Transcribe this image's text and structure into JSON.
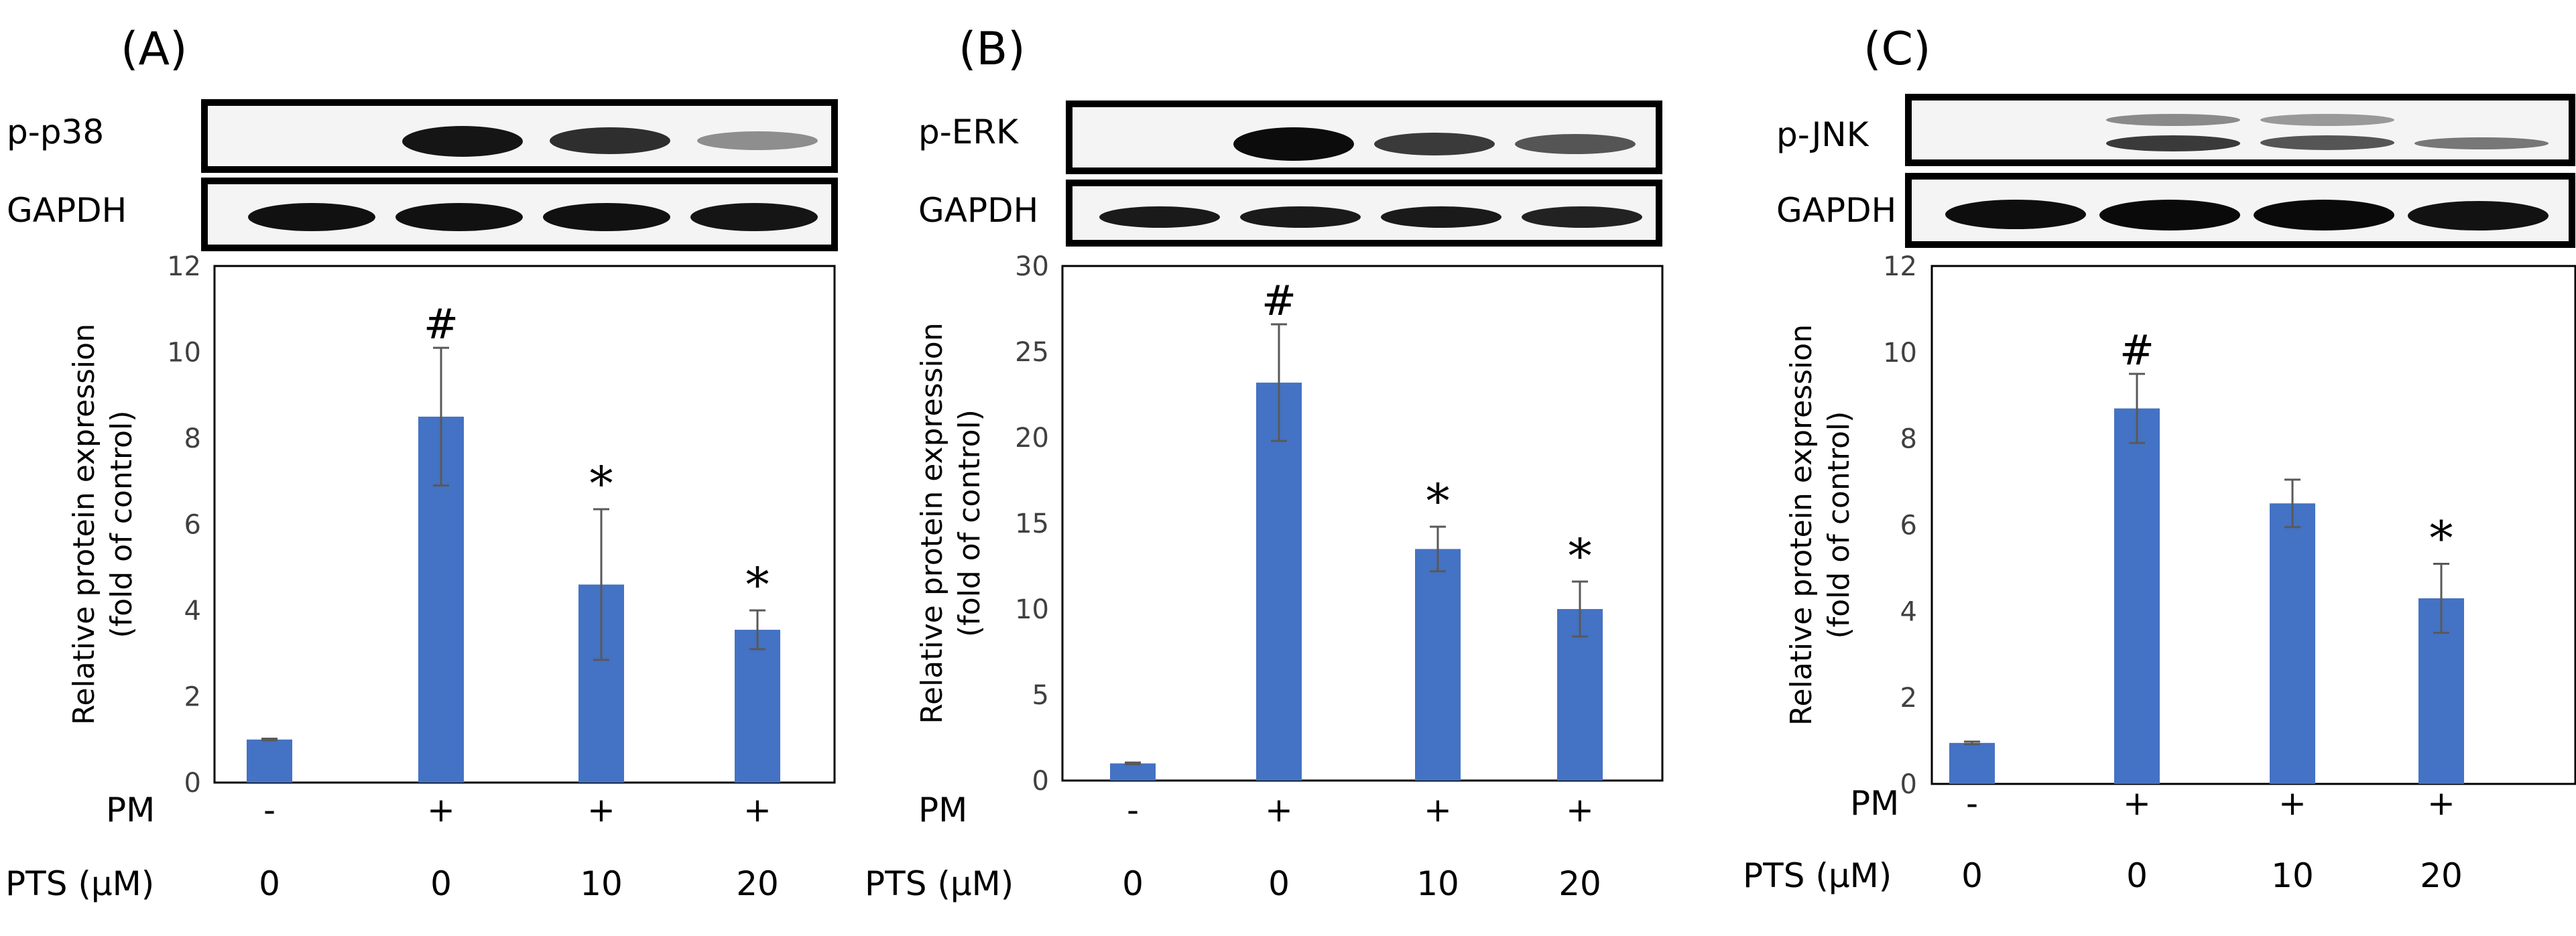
{
  "colors": {
    "bar": "#4472C4",
    "frame": "#000000",
    "errorbar": "#595959"
  },
  "panels": [
    {
      "label": "(A)",
      "phospho_label": "p-p38",
      "loading_label": "GAPDH",
      "pm_label": "PM",
      "pm_values": [
        "-",
        "+",
        "+",
        "+"
      ],
      "pts_label": "PTS (μM)",
      "pts_values": [
        "0",
        "0",
        "10",
        "20"
      ]
    },
    {
      "label": "(B)",
      "phospho_label": "p-ERK",
      "loading_label": "GAPDH",
      "pm_label": "PM",
      "pm_values": [
        "-",
        "+",
        "+",
        "+"
      ],
      "pts_label": "PTS (μM)",
      "pts_values": [
        "0",
        "0",
        "10",
        "20"
      ]
    },
    {
      "label": "(C)",
      "phospho_label": "p-JNK",
      "loading_label": "GAPDH",
      "pm_label": "PM",
      "pm_values": [
        "-",
        "+",
        "+",
        "+"
      ],
      "pts_label": "PTS (μM)",
      "pts_values": [
        "0",
        "0",
        "10",
        "20"
      ]
    }
  ],
  "chart_data": [
    {
      "type": "bar",
      "ylabel": "Relative protein expression\n(fold of control)",
      "ylim": [
        0,
        12
      ],
      "yticks": [
        "0",
        "2",
        "4",
        "6",
        "8",
        "10",
        "12"
      ],
      "values": [
        1.0,
        8.5,
        4.6,
        3.55
      ],
      "errors": [
        0.02,
        1.6,
        1.75,
        0.45
      ],
      "annotations": [
        "",
        "#",
        "*",
        "*"
      ]
    },
    {
      "type": "bar",
      "ylabel": "Relative protein expression\n(fold of control)",
      "ylim": [
        0,
        30
      ],
      "yticks": [
        "0",
        "5",
        "10",
        "15",
        "20",
        "25",
        "30"
      ],
      "values": [
        1.0,
        23.2,
        13.5,
        10.0
      ],
      "errors": [
        0.05,
        3.4,
        1.3,
        1.6
      ],
      "annotations": [
        "",
        "#",
        "*",
        "*"
      ]
    },
    {
      "type": "bar",
      "ylabel": "Relative protein expression\n(fold of control)",
      "ylim": [
        0,
        12
      ],
      "yticks": [
        "0",
        "2",
        "4",
        "6",
        "8",
        "10",
        "12"
      ],
      "values": [
        0.95,
        8.7,
        6.5,
        4.3
      ],
      "errors": [
        0.03,
        0.8,
        0.55,
        0.8
      ],
      "annotations": [
        "",
        "#",
        "",
        "*"
      ]
    }
  ]
}
